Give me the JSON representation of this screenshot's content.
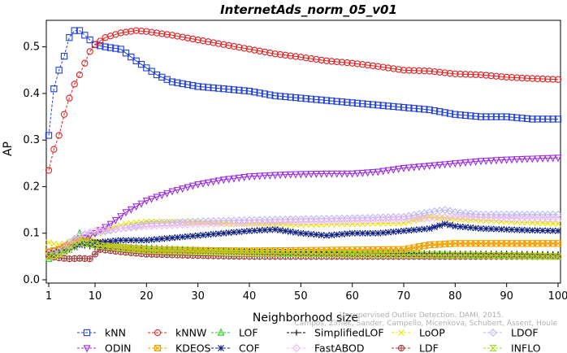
{
  "chart_data": {
    "type": "line",
    "title": "InternetAds_norm_05_v01",
    "xlabel": "Neighborhood size",
    "ylabel": "AP",
    "xlim": [
      1,
      100
    ],
    "ylim": [
      0.0,
      0.55
    ],
    "xticks": [
      1,
      10,
      20,
      30,
      40,
      50,
      60,
      70,
      80,
      90,
      100
    ],
    "yticks": [
      0.0,
      0.1,
      0.2,
      0.3,
      0.4,
      0.5
    ],
    "credit_lines": [
      "Campos, Zimek, Sander, Campello, Micenkova, Schubert, Assent, Houle",
      "Unsupervised Outlier Detection. DAMI, 2015."
    ],
    "legend_position": "bottom",
    "series": [
      {
        "name": "kNN",
        "color": "#1f3fd6",
        "marker": "square",
        "dashed_until": 10,
        "points": [
          [
            1,
            0.31
          ],
          [
            2,
            0.41
          ],
          [
            3,
            0.45
          ],
          [
            4,
            0.48
          ],
          [
            5,
            0.52
          ],
          [
            6,
            0.535
          ],
          [
            7,
            0.535
          ],
          [
            8,
            0.525
          ],
          [
            9,
            0.515
          ],
          [
            10,
            0.505
          ],
          [
            12,
            0.5
          ],
          [
            15,
            0.495
          ],
          [
            18,
            0.47
          ],
          [
            22,
            0.44
          ],
          [
            25,
            0.425
          ],
          [
            30,
            0.415
          ],
          [
            35,
            0.41
          ],
          [
            40,
            0.405
          ],
          [
            45,
            0.395
          ],
          [
            50,
            0.39
          ],
          [
            55,
            0.385
          ],
          [
            60,
            0.38
          ],
          [
            65,
            0.375
          ],
          [
            70,
            0.37
          ],
          [
            75,
            0.365
          ],
          [
            80,
            0.355
          ],
          [
            85,
            0.35
          ],
          [
            90,
            0.35
          ],
          [
            95,
            0.345
          ],
          [
            100,
            0.345
          ]
        ]
      },
      {
        "name": "kNNW",
        "color": "#e02020",
        "marker": "circle",
        "dashed_until": 10,
        "points": [
          [
            1,
            0.235
          ],
          [
            2,
            0.28
          ],
          [
            3,
            0.31
          ],
          [
            4,
            0.355
          ],
          [
            5,
            0.39
          ],
          [
            6,
            0.42
          ],
          [
            7,
            0.44
          ],
          [
            8,
            0.465
          ],
          [
            9,
            0.49
          ],
          [
            10,
            0.505
          ],
          [
            12,
            0.52
          ],
          [
            15,
            0.53
          ],
          [
            18,
            0.535
          ],
          [
            20,
            0.533
          ],
          [
            25,
            0.525
          ],
          [
            30,
            0.515
          ],
          [
            35,
            0.505
          ],
          [
            40,
            0.495
          ],
          [
            45,
            0.485
          ],
          [
            50,
            0.478
          ],
          [
            55,
            0.47
          ],
          [
            60,
            0.465
          ],
          [
            65,
            0.458
          ],
          [
            70,
            0.45
          ],
          [
            75,
            0.448
          ],
          [
            80,
            0.442
          ],
          [
            85,
            0.44
          ],
          [
            90,
            0.435
          ],
          [
            95,
            0.432
          ],
          [
            100,
            0.43
          ]
        ]
      },
      {
        "name": "LOF",
        "color": "#22cc22",
        "marker": "triangle-up",
        "dashed_until": 10,
        "points": [
          [
            1,
            0.045
          ],
          [
            3,
            0.06
          ],
          [
            5,
            0.07
          ],
          [
            7,
            0.1
          ],
          [
            8,
            0.09
          ],
          [
            10,
            0.08
          ],
          [
            15,
            0.07
          ],
          [
            20,
            0.068
          ],
          [
            30,
            0.063
          ],
          [
            40,
            0.06
          ],
          [
            50,
            0.057
          ],
          [
            60,
            0.056
          ],
          [
            70,
            0.055
          ],
          [
            80,
            0.054
          ],
          [
            90,
            0.053
          ],
          [
            100,
            0.052
          ]
        ]
      },
      {
        "name": "SimplifiedLOF",
        "color": "#000000",
        "marker": "plus",
        "dashed_until": 10,
        "points": [
          [
            1,
            0.055
          ],
          [
            3,
            0.06
          ],
          [
            5,
            0.07
          ],
          [
            7,
            0.075
          ],
          [
            10,
            0.07
          ],
          [
            15,
            0.065
          ],
          [
            20,
            0.065
          ],
          [
            30,
            0.062
          ],
          [
            40,
            0.06
          ],
          [
            50,
            0.06
          ],
          [
            60,
            0.058
          ],
          [
            70,
            0.057
          ],
          [
            80,
            0.056
          ],
          [
            90,
            0.056
          ],
          [
            100,
            0.055
          ]
        ]
      },
      {
        "name": "LoOP",
        "color": "#e8e800",
        "marker": "x",
        "dashed_until": 10,
        "points": [
          [
            1,
            0.08
          ],
          [
            3,
            0.075
          ],
          [
            5,
            0.08
          ],
          [
            8,
            0.09
          ],
          [
            10,
            0.1
          ],
          [
            13,
            0.11
          ],
          [
            16,
            0.12
          ],
          [
            20,
            0.125
          ],
          [
            30,
            0.123
          ],
          [
            40,
            0.12
          ],
          [
            50,
            0.118
          ],
          [
            60,
            0.12
          ],
          [
            70,
            0.122
          ],
          [
            75,
            0.135
          ],
          [
            80,
            0.13
          ],
          [
            90,
            0.125
          ],
          [
            100,
            0.12
          ]
        ]
      },
      {
        "name": "LDOF",
        "color": "#b8b8f0",
        "marker": "diamond",
        "dashed_until": 10,
        "points": [
          [
            1,
            0.06
          ],
          [
            3,
            0.065
          ],
          [
            5,
            0.08
          ],
          [
            7,
            0.095
          ],
          [
            10,
            0.1
          ],
          [
            15,
            0.11
          ],
          [
            20,
            0.12
          ],
          [
            30,
            0.125
          ],
          [
            40,
            0.128
          ],
          [
            50,
            0.13
          ],
          [
            60,
            0.132
          ],
          [
            70,
            0.135
          ],
          [
            75,
            0.145
          ],
          [
            78,
            0.15
          ],
          [
            80,
            0.145
          ],
          [
            85,
            0.14
          ],
          [
            90,
            0.14
          ],
          [
            100,
            0.14
          ]
        ]
      },
      {
        "name": "ODIN",
        "color": "#9a2ee0",
        "marker": "triangle-down",
        "dashed_until": 10,
        "points": [
          [
            1,
            0.06
          ],
          [
            3,
            0.065
          ],
          [
            5,
            0.075
          ],
          [
            7,
            0.085
          ],
          [
            10,
            0.1
          ],
          [
            13,
            0.12
          ],
          [
            16,
            0.145
          ],
          [
            20,
            0.17
          ],
          [
            25,
            0.19
          ],
          [
            30,
            0.205
          ],
          [
            35,
            0.215
          ],
          [
            40,
            0.222
          ],
          [
            45,
            0.225
          ],
          [
            50,
            0.227
          ],
          [
            55,
            0.228
          ],
          [
            60,
            0.228
          ],
          [
            65,
            0.232
          ],
          [
            70,
            0.24
          ],
          [
            75,
            0.245
          ],
          [
            80,
            0.25
          ],
          [
            85,
            0.255
          ],
          [
            90,
            0.258
          ],
          [
            95,
            0.26
          ],
          [
            100,
            0.262
          ]
        ]
      },
      {
        "name": "KDEOS",
        "color": "#f0a000",
        "marker": "square-x",
        "dashed_until": 10,
        "points": [
          [
            1,
            0.06
          ],
          [
            3,
            0.065
          ],
          [
            5,
            0.075
          ],
          [
            7,
            0.085
          ],
          [
            10,
            0.08
          ],
          [
            15,
            0.07
          ],
          [
            20,
            0.065
          ],
          [
            30,
            0.063
          ],
          [
            40,
            0.062
          ],
          [
            50,
            0.063
          ],
          [
            60,
            0.064
          ],
          [
            70,
            0.065
          ],
          [
            75,
            0.075
          ],
          [
            80,
            0.078
          ],
          [
            90,
            0.078
          ],
          [
            100,
            0.078
          ]
        ]
      },
      {
        "name": "COF",
        "color": "#102080",
        "marker": "asterisk",
        "dashed_until": 10,
        "points": [
          [
            1,
            0.055
          ],
          [
            3,
            0.06
          ],
          [
            5,
            0.065
          ],
          [
            7,
            0.075
          ],
          [
            10,
            0.08
          ],
          [
            15,
            0.085
          ],
          [
            20,
            0.085
          ],
          [
            25,
            0.09
          ],
          [
            30,
            0.095
          ],
          [
            35,
            0.1
          ],
          [
            40,
            0.105
          ],
          [
            45,
            0.108
          ],
          [
            50,
            0.1
          ],
          [
            55,
            0.095
          ],
          [
            60,
            0.1
          ],
          [
            65,
            0.1
          ],
          [
            70,
            0.105
          ],
          [
            75,
            0.11
          ],
          [
            78,
            0.12
          ],
          [
            80,
            0.115
          ],
          [
            85,
            0.11
          ],
          [
            90,
            0.108
          ],
          [
            95,
            0.106
          ],
          [
            100,
            0.105
          ]
        ]
      },
      {
        "name": "FastABOD",
        "color": "#f0b8f0",
        "marker": "diamond",
        "dashed_until": 10,
        "points": [
          [
            1,
            0.055
          ],
          [
            3,
            0.06
          ],
          [
            5,
            0.075
          ],
          [
            7,
            0.095
          ],
          [
            10,
            0.105
          ],
          [
            15,
            0.11
          ],
          [
            20,
            0.115
          ],
          [
            30,
            0.12
          ],
          [
            40,
            0.122
          ],
          [
            50,
            0.125
          ],
          [
            60,
            0.127
          ],
          [
            70,
            0.13
          ],
          [
            80,
            0.135
          ],
          [
            90,
            0.132
          ],
          [
            100,
            0.13
          ]
        ]
      },
      {
        "name": "LDF",
        "color": "#a03838",
        "marker": "circle-cross",
        "dashed_until": 10,
        "points": [
          [
            1,
            0.05
          ],
          [
            3,
            0.047
          ],
          [
            5,
            0.045
          ],
          [
            7,
            0.046
          ],
          [
            9,
            0.045
          ],
          [
            11,
            0.065
          ],
          [
            15,
            0.06
          ],
          [
            20,
            0.055
          ],
          [
            30,
            0.052
          ],
          [
            40,
            0.05
          ],
          [
            50,
            0.05
          ],
          [
            60,
            0.05
          ],
          [
            70,
            0.05
          ],
          [
            80,
            0.05
          ],
          [
            90,
            0.05
          ],
          [
            100,
            0.05
          ]
        ]
      },
      {
        "name": "INFLO",
        "color": "#a8d830",
        "marker": "hourglass",
        "dashed_until": 10,
        "points": [
          [
            1,
            0.05
          ],
          [
            3,
            0.055
          ],
          [
            5,
            0.065
          ],
          [
            7,
            0.08
          ],
          [
            10,
            0.075
          ],
          [
            15,
            0.068
          ],
          [
            20,
            0.063
          ],
          [
            30,
            0.06
          ],
          [
            40,
            0.057
          ],
          [
            50,
            0.056
          ],
          [
            60,
            0.055
          ],
          [
            70,
            0.054
          ],
          [
            80,
            0.053
          ],
          [
            90,
            0.052
          ],
          [
            100,
            0.05
          ]
        ]
      }
    ]
  }
}
